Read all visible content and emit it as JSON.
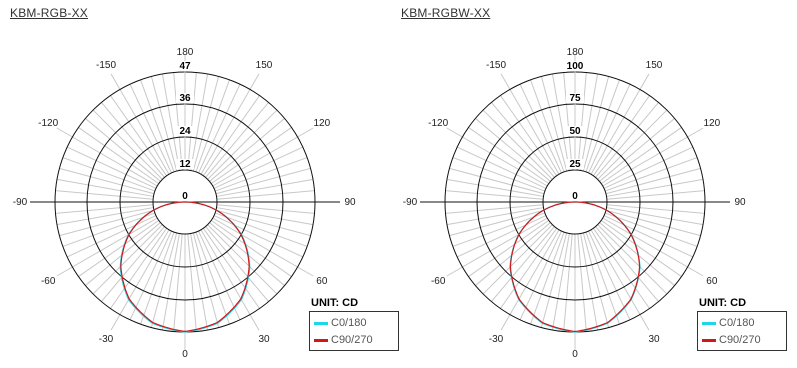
{
  "chart_data": [
    {
      "type": "polar",
      "title": "KBM-RGB-XX",
      "unit_label": "UNIT: CD",
      "radial_ticks": [
        "0",
        "12",
        "24",
        "36",
        "47"
      ],
      "rmax": 47,
      "angle_labels": [
        "180",
        "150",
        "120",
        "90",
        "60",
        "30",
        "0",
        "-30",
        "-60",
        "-90",
        "-120",
        "-150"
      ],
      "legend": [
        {
          "name": "C0/180",
          "color": "#1fd6e8"
        },
        {
          "name": "C90/270",
          "color": "#d01818"
        }
      ],
      "series": [
        {
          "name": "C0/180",
          "angles": [
            -90,
            -75,
            -60,
            -45,
            -30,
            -15,
            0,
            15,
            30,
            45,
            60,
            75,
            90
          ],
          "values": [
            0,
            12.2,
            23.6,
            33.1,
            40.8,
            45.4,
            47,
            45.4,
            40.8,
            33.1,
            23.6,
            12.2,
            0
          ]
        },
        {
          "name": "C90/270",
          "angles": [
            -90,
            -75,
            -60,
            -45,
            -30,
            -15,
            0,
            15,
            30,
            45,
            60,
            75,
            90
          ],
          "values": [
            0,
            12.0,
            23.3,
            32.8,
            40.4,
            45.1,
            46.8,
            45.1,
            40.4,
            32.8,
            23.3,
            12.0,
            0
          ]
        }
      ]
    },
    {
      "type": "polar",
      "title": "KBM-RGBW-XX",
      "unit_label": "UNIT: CD",
      "radial_ticks": [
        "0",
        "25",
        "50",
        "75",
        "100"
      ],
      "rmax": 100,
      "angle_labels": [
        "180",
        "150",
        "120",
        "90",
        "60",
        "30",
        "0",
        "-30",
        "-60",
        "-90",
        "-120",
        "-150"
      ],
      "legend": [
        {
          "name": "C0/180",
          "color": "#1fd6e8"
        },
        {
          "name": "C90/270",
          "color": "#d01818"
        }
      ],
      "series": [
        {
          "name": "C0/180",
          "angles": [
            -90,
            -75,
            -60,
            -45,
            -30,
            -15,
            0,
            15,
            30,
            45,
            60,
            75,
            90
          ],
          "values": [
            0,
            25.9,
            50,
            70.7,
            86.6,
            96.6,
            100,
            96.6,
            86.6,
            70.7,
            50,
            25.9,
            0
          ]
        },
        {
          "name": "C90/270",
          "angles": [
            -90,
            -75,
            -60,
            -45,
            -30,
            -15,
            0,
            15,
            30,
            45,
            60,
            75,
            90
          ],
          "values": [
            0,
            25.6,
            49.6,
            70.3,
            86.1,
            96.1,
            99.6,
            96.1,
            86.1,
            70.3,
            49.6,
            25.6,
            0
          ]
        }
      ]
    }
  ]
}
